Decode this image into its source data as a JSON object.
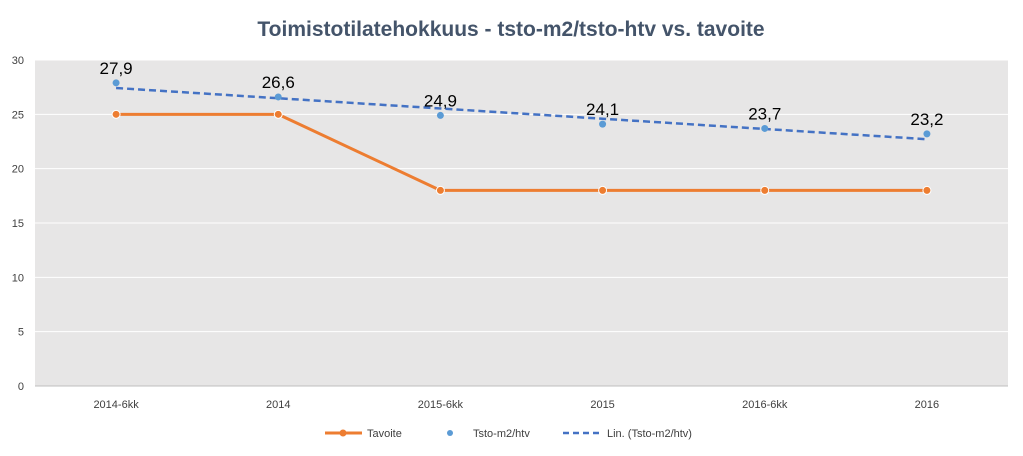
{
  "chart_data": {
    "type": "line",
    "title": "Toimistotilatehokkuus - tsto-m2/tsto-htv vs. tavoite",
    "categories": [
      "2014-6kk",
      "2014",
      "2015-6kk",
      "2015",
      "2016-6kk",
      "2016"
    ],
    "ylim": [
      0,
      30
    ],
    "yticks": [
      0,
      5,
      10,
      15,
      20,
      25,
      30
    ],
    "grid": true,
    "legend": "bottom",
    "series": [
      {
        "name": "Tavoite",
        "kind": "line-marker",
        "values": [
          25,
          25,
          18,
          18,
          18,
          18
        ],
        "color": "#ed7d31"
      },
      {
        "name": "Tsto-m2/htv",
        "kind": "marker",
        "values": [
          27.9,
          26.6,
          24.9,
          24.1,
          23.7,
          23.2
        ],
        "color": "#5b9bd5",
        "data_labels": [
          "27,9",
          "26,6",
          "24,9",
          "24,1",
          "23,7",
          "23,2"
        ]
      },
      {
        "name": "Lin. (Tsto-m2/htv)",
        "kind": "trendline",
        "color": "#4472c4"
      }
    ]
  }
}
